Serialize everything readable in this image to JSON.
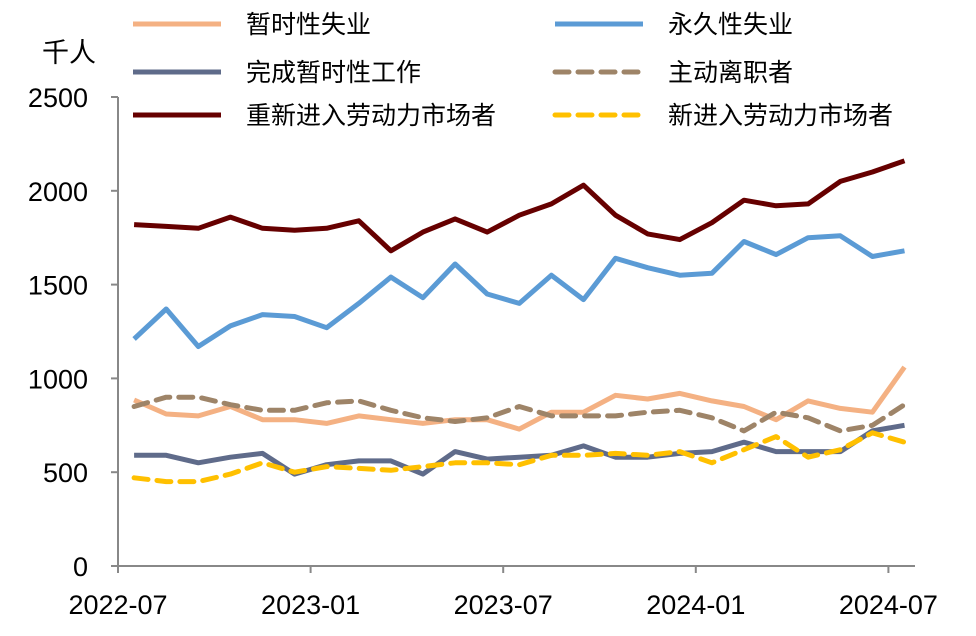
{
  "chart_data": {
    "type": "line",
    "ylabel": "千人",
    "ylim": [
      0,
      2500
    ],
    "yticks": [
      0,
      500,
      1000,
      1500,
      2000,
      2500
    ],
    "xtick_labels": [
      "2022-07",
      "2023-01",
      "2023-07",
      "2024-01",
      "2024-07"
    ],
    "x": [
      "2022-07",
      "2022-08",
      "2022-09",
      "2022-10",
      "2022-11",
      "2022-12",
      "2023-01",
      "2023-02",
      "2023-03",
      "2023-04",
      "2023-05",
      "2023-06",
      "2023-07",
      "2023-08",
      "2023-09",
      "2023-10",
      "2023-11",
      "2023-12",
      "2024-01",
      "2024-02",
      "2024-03",
      "2024-04",
      "2024-05",
      "2024-06",
      "2024-07"
    ],
    "grid": false,
    "legend_position": "top",
    "series": [
      {
        "name": "暂时性失业",
        "color": "#F4B183",
        "dash": false,
        "values": [
          885,
          810,
          800,
          850,
          780,
          780,
          760,
          800,
          780,
          760,
          780,
          780,
          730,
          820,
          820,
          910,
          890,
          920,
          880,
          850,
          780,
          880,
          840,
          820,
          1060
        ]
      },
      {
        "name": "永久性失业",
        "color": "#5B9BD5",
        "dash": false,
        "values": [
          1210,
          1370,
          1170,
          1280,
          1340,
          1330,
          1270,
          1400,
          1540,
          1430,
          1610,
          1450,
          1400,
          1550,
          1420,
          1640,
          1590,
          1550,
          1560,
          1730,
          1660,
          1750,
          1760,
          1650,
          1680
        ]
      },
      {
        "name": "完成暂时性工作",
        "color": "#5F6B8A",
        "dash": false,
        "values": [
          590,
          590,
          550,
          580,
          600,
          490,
          540,
          560,
          560,
          490,
          610,
          570,
          580,
          590,
          640,
          580,
          580,
          600,
          610,
          660,
          610,
          610,
          610,
          720,
          750
        ]
      },
      {
        "name": "主动离职者",
        "color": "#9E8468",
        "dash": true,
        "values": [
          850,
          900,
          900,
          860,
          830,
          830,
          870,
          880,
          830,
          790,
          770,
          790,
          850,
          800,
          800,
          800,
          820,
          830,
          790,
          720,
          820,
          790,
          720,
          750,
          860
        ]
      },
      {
        "name": "重新进入劳动力市场者",
        "color": "#660000",
        "dash": false,
        "values": [
          1820,
          1810,
          1800,
          1860,
          1800,
          1790,
          1800,
          1840,
          1680,
          1780,
          1850,
          1780,
          1870,
          1930,
          2030,
          1870,
          1770,
          1740,
          1830,
          1950,
          1920,
          1930,
          2050,
          2100,
          2160
        ]
      },
      {
        "name": "新进入劳动力市场者",
        "color": "#FFC000",
        "dash": true,
        "values": [
          470,
          450,
          450,
          490,
          550,
          500,
          530,
          520,
          510,
          530,
          550,
          550,
          540,
          590,
          590,
          600,
          590,
          610,
          550,
          620,
          690,
          580,
          620,
          710,
          660
        ]
      }
    ]
  }
}
